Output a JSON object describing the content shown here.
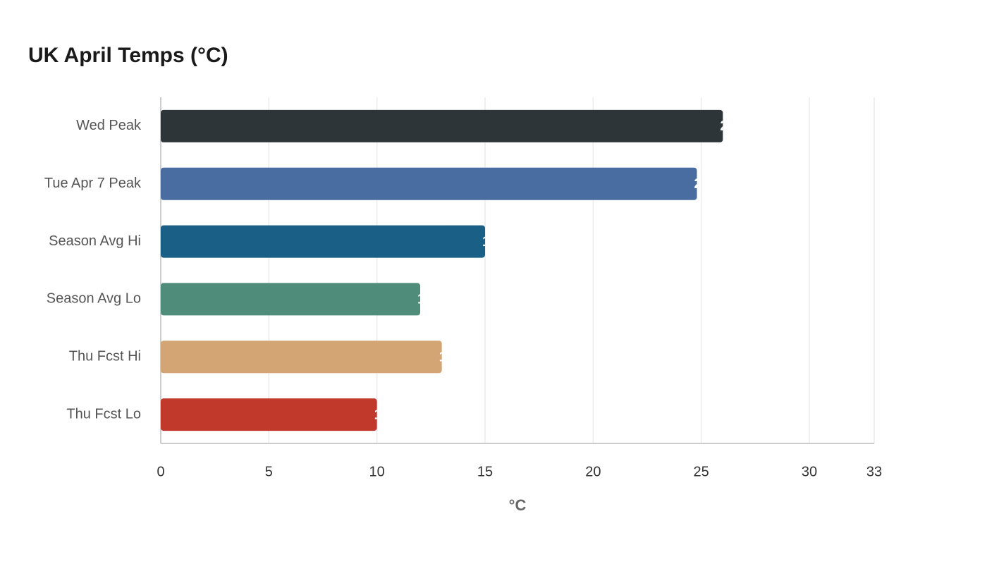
{
  "chart_data": {
    "type": "bar",
    "orientation": "horizontal",
    "title": "UK April Temps (°C)",
    "x_label": "°C",
    "categories": [
      "Wed Peak",
      "Tue Apr 7 Peak",
      "Season Avg Hi",
      "Season Avg Lo",
      "Thu Fcst Hi",
      "Thu Fcst Lo"
    ],
    "values": [
      26,
      24.8,
      15,
      12,
      13,
      10
    ],
    "colors": [
      "#2e3538",
      "#4a6da1",
      "#1a5f86",
      "#4f8c7a",
      "#d3a574",
      "#c0392b"
    ],
    "xlim": [
      0,
      33
    ],
    "xticks": [
      0,
      5,
      10,
      15,
      20,
      25,
      30,
      33
    ],
    "grid": true
  }
}
